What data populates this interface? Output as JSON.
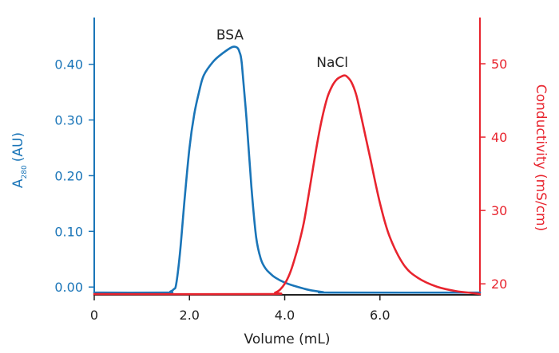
{
  "chart_data": {
    "type": "line",
    "title": "",
    "xlabel": "Volume (mL)",
    "ylabel_left_base": "A",
    "ylabel_left_sub": "280",
    "ylabel_left_unit": "(AU)",
    "ylabel_right": "Conductivity (mS/cm)",
    "xlim": [
      0,
      8.1
    ],
    "ylim_left": [
      -0.014,
      0.484
    ],
    "ylim_right": [
      18.5,
      56.3
    ],
    "x_ticks": [
      0,
      2,
      4,
      6
    ],
    "x_tick_labels": [
      "0",
      "2.0",
      "4.0",
      "6.0"
    ],
    "y_left_ticks": [
      0,
      0.1,
      0.2,
      0.3,
      0.4
    ],
    "y_left_tick_labels": [
      "0.00",
      "0.10",
      "0.20",
      "0.30",
      "0.40"
    ],
    "y_right_ticks": [
      20,
      30,
      40,
      50
    ],
    "y_right_tick_labels": [
      "20",
      "30",
      "40",
      "50"
    ],
    "grid": false,
    "colors": {
      "left_axis": "#1a75b8",
      "right_axis": "#e8242e",
      "x_axis": "#222222"
    },
    "annotations": [
      {
        "text": "BSA",
        "x": 2.85,
        "y_left": 0.445
      },
      {
        "text": "NaCl",
        "x": 5.0,
        "y_left": 0.395
      }
    ],
    "series": [
      {
        "name": "BSA",
        "axis": "left",
        "color": "#1a75b8",
        "x": [
          0,
          1.5,
          1.6,
          1.67,
          1.72,
          1.8,
          1.9,
          2.0,
          2.1,
          2.2,
          2.3,
          2.5,
          2.7,
          2.9,
          3.0,
          3.05,
          3.1,
          3.2,
          3.3,
          3.4,
          3.5,
          3.6,
          3.7,
          3.8,
          4.0,
          4.2,
          4.5,
          4.8,
          5.0,
          8.1
        ],
        "y": [
          -0.01,
          -0.01,
          -0.008,
          -0.004,
          0.005,
          0.06,
          0.16,
          0.25,
          0.31,
          0.35,
          0.38,
          0.405,
          0.42,
          0.431,
          0.43,
          0.422,
          0.4,
          0.3,
          0.18,
          0.09,
          0.05,
          0.033,
          0.024,
          0.017,
          0.008,
          0.002,
          -0.005,
          -0.009,
          -0.01,
          -0.01
        ]
      },
      {
        "name": "NaCl",
        "axis": "right",
        "color": "#e8242e",
        "x": [
          0,
          3.6,
          3.8,
          3.9,
          4.0,
          4.1,
          4.2,
          4.3,
          4.4,
          4.5,
          4.6,
          4.7,
          4.8,
          4.9,
          5.0,
          5.1,
          5.2,
          5.25,
          5.3,
          5.4,
          5.5,
          5.6,
          5.7,
          5.8,
          6.0,
          6.2,
          6.5,
          6.8,
          7.2,
          7.6,
          8.0,
          8.1
        ],
        "y": [
          18.6,
          18.6,
          18.8,
          19.2,
          20.0,
          21.3,
          23.2,
          25.5,
          28.3,
          32.0,
          36.0,
          39.8,
          43.0,
          45.5,
          47.0,
          47.9,
          48.3,
          48.4,
          48.3,
          47.5,
          45.8,
          43.0,
          40.0,
          37.0,
          31.0,
          26.5,
          22.6,
          20.8,
          19.6,
          19.0,
          18.7,
          18.6
        ]
      }
    ]
  }
}
